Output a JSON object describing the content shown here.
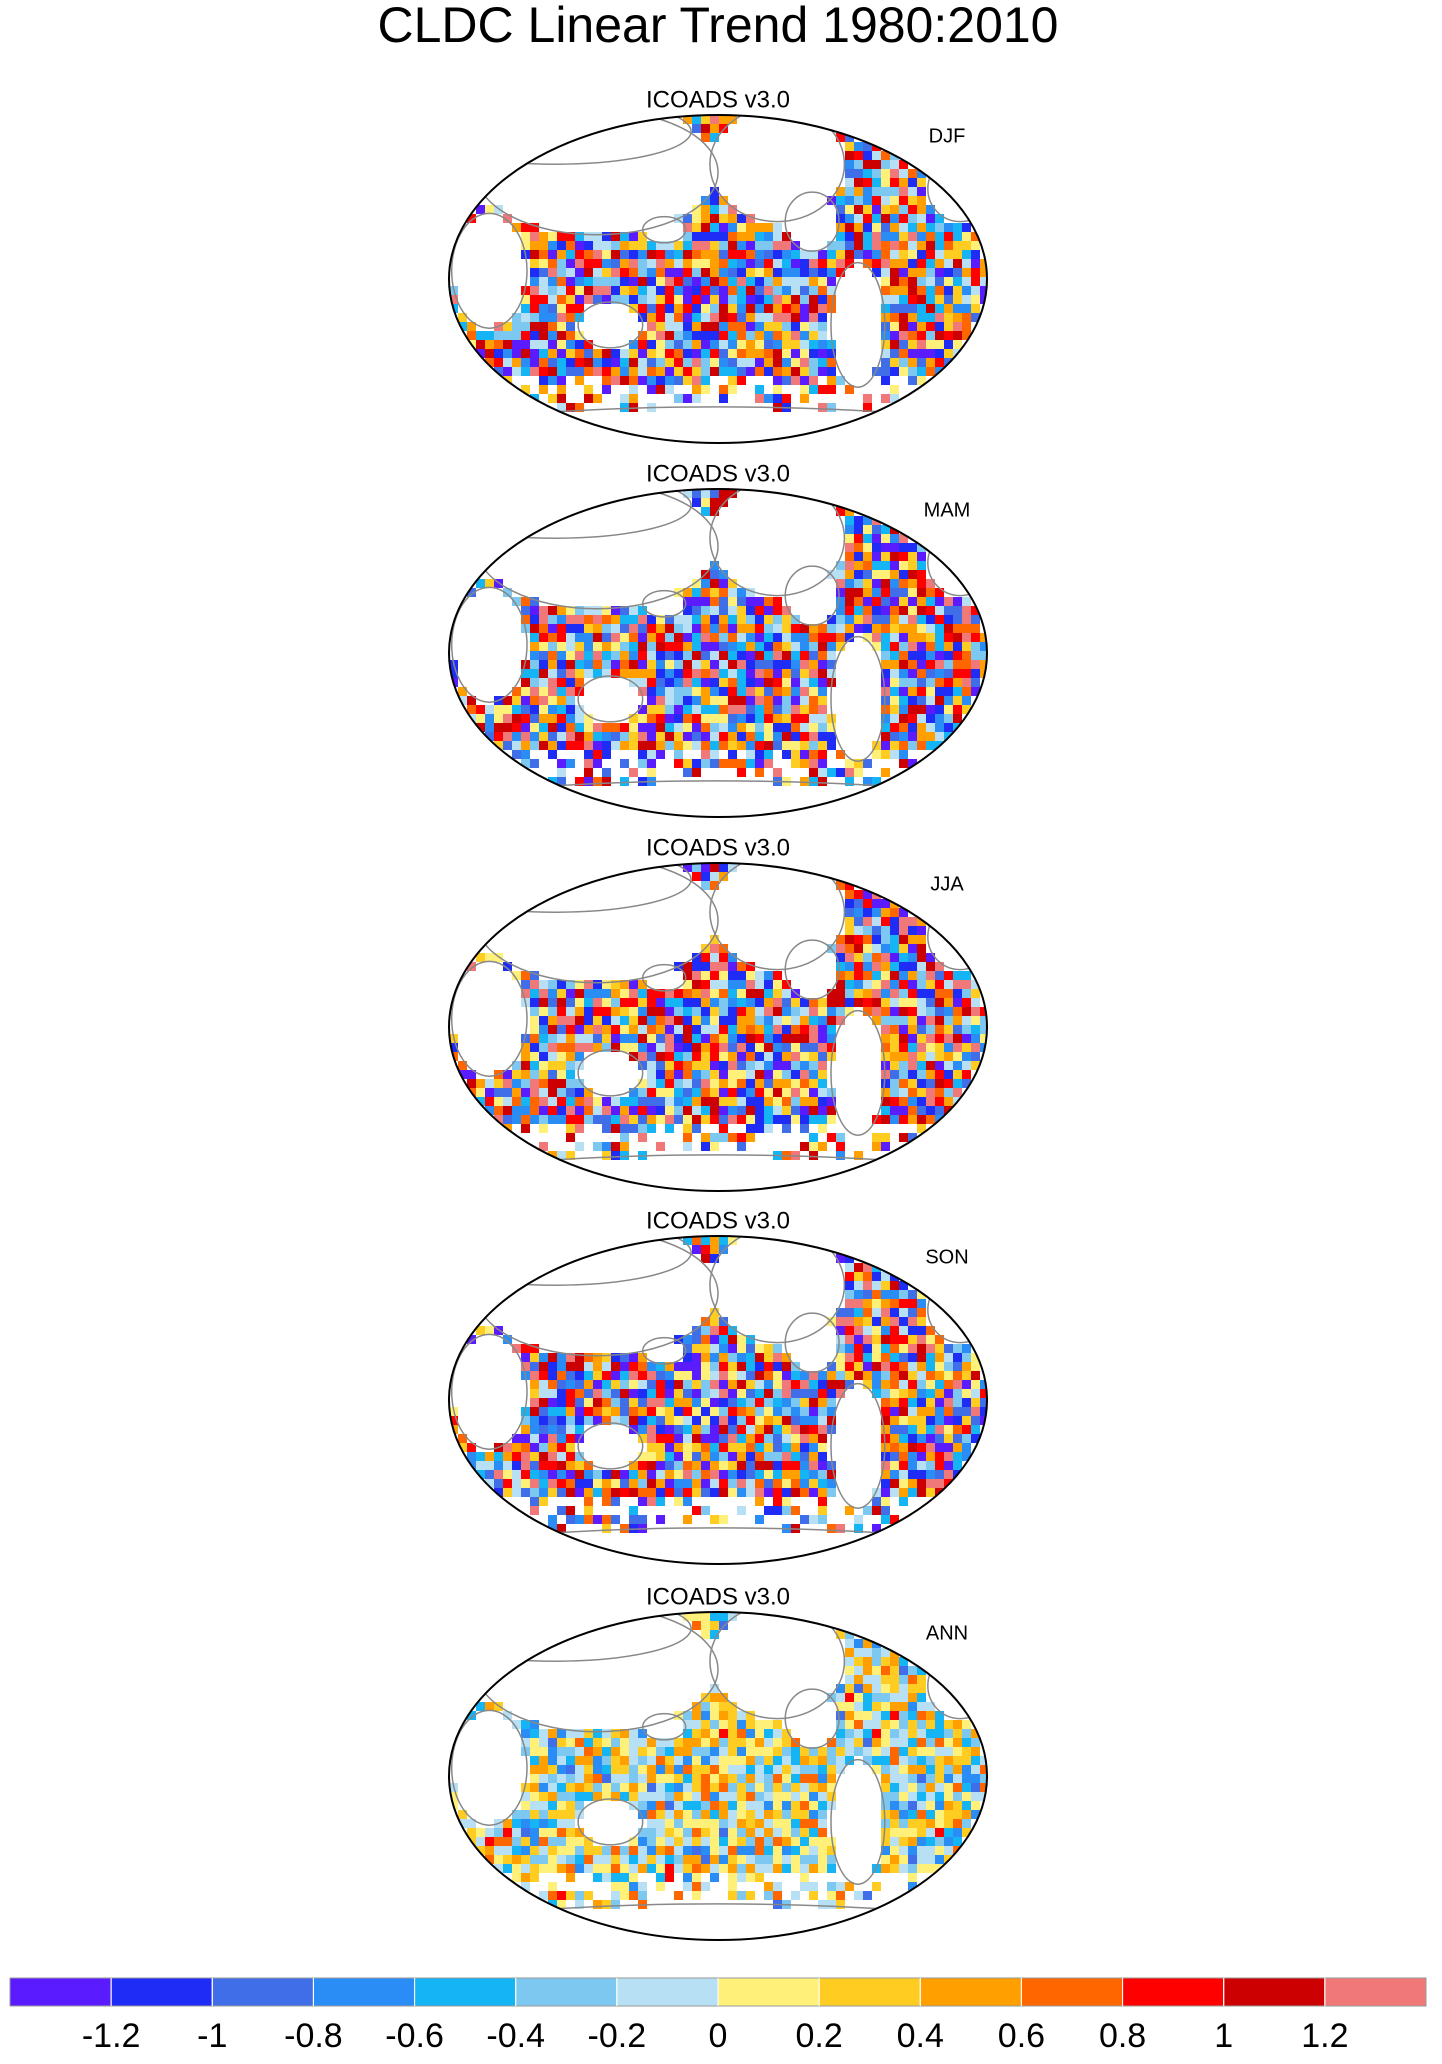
{
  "title": "CLDC Linear Trend 1980:2010",
  "panels": [
    {
      "subtitle": "ICOADS v3.0",
      "label": "DJF"
    },
    {
      "subtitle": "ICOADS v3.0",
      "label": "MAM"
    },
    {
      "subtitle": "ICOADS v3.0",
      "label": "JJA"
    },
    {
      "subtitle": "ICOADS v3.0",
      "label": "SON"
    },
    {
      "subtitle": "ICOADS v3.0",
      "label": "ANN"
    }
  ],
  "colorbar": {
    "colors": [
      "#5a1bff",
      "#1e2cf5",
      "#3f6ee8",
      "#2a8cf5",
      "#14b4f5",
      "#7dc8f0",
      "#b8e0f5",
      "#fff07a",
      "#ffcc22",
      "#ffa000",
      "#ff6600",
      "#ff0000",
      "#cc0000",
      "#f07878"
    ],
    "ticks": [
      -1.2,
      -1,
      -0.8,
      -0.6,
      -0.4,
      -0.2,
      0,
      0.2,
      0.4,
      0.6,
      0.8,
      1,
      1.2
    ]
  }
}
